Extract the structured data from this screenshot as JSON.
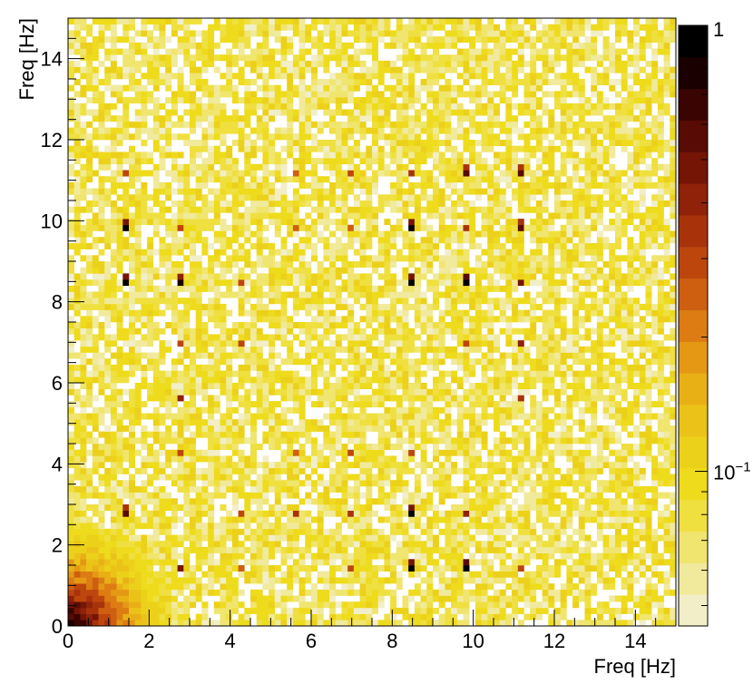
{
  "chart_data": {
    "type": "heatmap",
    "title": "",
    "xlabel": "Freq [Hz]",
    "ylabel": "Freq [Hz]",
    "xlim": [
      0,
      15
    ],
    "ylim": [
      0,
      15
    ],
    "bins_x": 100,
    "bins_y": 100,
    "x_ticks": [
      0,
      2,
      4,
      6,
      8,
      10,
      12,
      14
    ],
    "x_tick_labels": [
      "0",
      "2",
      "4",
      "6",
      "8",
      "10",
      "12",
      "14"
    ],
    "y_ticks": [
      0,
      2,
      4,
      6,
      8,
      10,
      12,
      14
    ],
    "y_tick_labels": [
      "0",
      "2",
      "4",
      "6",
      "8",
      "10",
      "12",
      "14"
    ],
    "z_scale": "log",
    "zlim": [
      0.045,
      1
    ],
    "z_tick_labels": {
      "one": "1",
      "tenth_base": "10",
      "tenth_exp": "−1"
    },
    "background_level": "~0.06–0.1 (noisy uniform)",
    "low_frequency_excess": "values rise toward ~0.5–1 near origin (x,y < 2 Hz)",
    "peaks": [
      {
        "x": 1.4,
        "y": 9.8,
        "z": 0.9
      },
      {
        "x": 1.4,
        "y": 8.4,
        "z": 0.9
      },
      {
        "x": 1.4,
        "y": 2.8,
        "z": 0.6
      },
      {
        "x": 1.4,
        "y": 11.2,
        "z": 0.3
      },
      {
        "x": 2.8,
        "y": 8.4,
        "z": 0.8
      },
      {
        "x": 2.8,
        "y": 9.8,
        "z": 0.3
      },
      {
        "x": 2.8,
        "y": 7.0,
        "z": 0.3
      },
      {
        "x": 2.8,
        "y": 5.6,
        "z": 0.4
      },
      {
        "x": 2.8,
        "y": 4.2,
        "z": 0.3
      },
      {
        "x": 2.8,
        "y": 1.4,
        "z": 0.5
      },
      {
        "x": 4.2,
        "y": 8.4,
        "z": 0.3
      },
      {
        "x": 4.2,
        "y": 7.0,
        "z": 0.3
      },
      {
        "x": 4.2,
        "y": 2.8,
        "z": 0.3
      },
      {
        "x": 4.2,
        "y": 1.4,
        "z": 0.25
      },
      {
        "x": 5.6,
        "y": 2.8,
        "z": 0.35
      },
      {
        "x": 5.6,
        "y": 4.2,
        "z": 0.25
      },
      {
        "x": 5.6,
        "y": 11.2,
        "z": 0.25
      },
      {
        "x": 7.0,
        "y": 11.2,
        "z": 0.3
      },
      {
        "x": 7.0,
        "y": 4.2,
        "z": 0.3
      },
      {
        "x": 7.0,
        "y": 2.8,
        "z": 0.35
      },
      {
        "x": 7.0,
        "y": 1.4,
        "z": 0.3
      },
      {
        "x": 8.4,
        "y": 11.2,
        "z": 0.35
      },
      {
        "x": 8.4,
        "y": 9.8,
        "z": 0.9
      },
      {
        "x": 8.4,
        "y": 8.4,
        "z": 0.9
      },
      {
        "x": 8.4,
        "y": 2.8,
        "z": 0.9
      },
      {
        "x": 8.4,
        "y": 1.4,
        "z": 0.9
      },
      {
        "x": 8.4,
        "y": 4.2,
        "z": 0.3
      },
      {
        "x": 9.8,
        "y": 11.2,
        "z": 0.6
      },
      {
        "x": 9.8,
        "y": 9.8,
        "z": 0.35
      },
      {
        "x": 9.8,
        "y": 8.4,
        "z": 0.95
      },
      {
        "x": 9.8,
        "y": 7.0,
        "z": 0.3
      },
      {
        "x": 9.8,
        "y": 2.8,
        "z": 0.4
      },
      {
        "x": 9.8,
        "y": 1.4,
        "z": 0.95
      },
      {
        "x": 11.2,
        "y": 11.2,
        "z": 0.6
      },
      {
        "x": 11.2,
        "y": 9.8,
        "z": 0.6
      },
      {
        "x": 11.2,
        "y": 8.4,
        "z": 0.5
      },
      {
        "x": 11.2,
        "y": 7.0,
        "z": 0.4
      },
      {
        "x": 11.2,
        "y": 5.6,
        "z": 0.35
      },
      {
        "x": 11.2,
        "y": 1.4,
        "z": 0.3
      },
      {
        "x": 5.6,
        "y": 9.8,
        "z": 0.25
      },
      {
        "x": 7.0,
        "y": 9.8,
        "z": 0.25
      }
    ],
    "palette": [
      "#f2eec8",
      "#f1ea9c",
      "#f0e56e",
      "#efe040",
      "#eedb1c",
      "#ecd11a",
      "#ebc318",
      "#e9b016",
      "#e49814",
      "#dc7c12",
      "#cf5f10",
      "#bd460d",
      "#a8330b",
      "#8f2208",
      "#741506",
      "#570b04",
      "#3a0402",
      "#1a0000",
      "#000000"
    ]
  }
}
